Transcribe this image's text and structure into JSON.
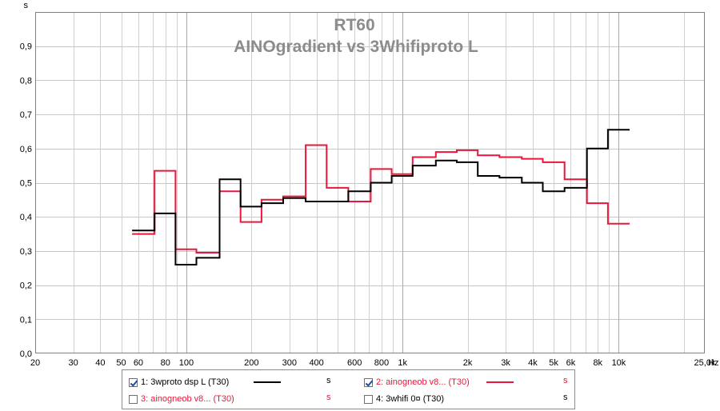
{
  "chart_data": {
    "type": "line",
    "title": "RT60",
    "subtitle": "AINOgradient vs 3Whifiproto L",
    "ylabel": "s",
    "xlabel": "Hz",
    "x_scale": "log",
    "xlim": [
      20,
      25000
    ],
    "ylim": [
      0,
      1.0
    ],
    "grid": true,
    "y_ticks": [
      "0,0",
      "0,1",
      "0,2",
      "0,3",
      "0,4",
      "0,5",
      "0,6",
      "0,7",
      "0,8",
      "0,9"
    ],
    "x_ticks": [
      {
        "v": 20,
        "label": "20"
      },
      {
        "v": 30,
        "label": "30"
      },
      {
        "v": 40,
        "label": "40"
      },
      {
        "v": 50,
        "label": "50"
      },
      {
        "v": 60,
        "label": "60"
      },
      {
        "v": 80,
        "label": "80"
      },
      {
        "v": 100,
        "label": "100"
      },
      {
        "v": 200,
        "label": "200"
      },
      {
        "v": 300,
        "label": "300"
      },
      {
        "v": 400,
        "label": "400"
      },
      {
        "v": 600,
        "label": "600"
      },
      {
        "v": 800,
        "label": "800"
      },
      {
        "v": 1000,
        "label": "1k"
      },
      {
        "v": 2000,
        "label": "2k"
      },
      {
        "v": 3000,
        "label": "3k"
      },
      {
        "v": 4000,
        "label": "4k"
      },
      {
        "v": 5000,
        "label": "5k"
      },
      {
        "v": 6000,
        "label": "6k"
      },
      {
        "v": 8000,
        "label": "8k"
      },
      {
        "v": 10000,
        "label": "10k"
      },
      {
        "v": 25000,
        "label": "25,0k"
      }
    ],
    "band_centers": [
      63,
      80,
      100,
      125,
      160,
      200,
      250,
      315,
      400,
      500,
      630,
      800,
      1000,
      1250,
      1600,
      2000,
      2500,
      3150,
      4000,
      5000,
      6300,
      8000,
      10000
    ],
    "series": [
      {
        "name": "1: 3wproto dsp L (T30)",
        "color": "#000000",
        "values": [
          0.36,
          0.41,
          0.26,
          0.28,
          0.51,
          0.43,
          0.44,
          0.455,
          0.445,
          0.445,
          0.475,
          0.5,
          0.52,
          0.55,
          0.565,
          0.56,
          0.52,
          0.515,
          0.5,
          0.475,
          0.485,
          0.6,
          0.655
        ]
      },
      {
        "name": "2: ainogneob v8... (T30)",
        "color": "#e8173b",
        "values": [
          0.35,
          0.535,
          0.305,
          0.295,
          0.475,
          0.385,
          0.45,
          0.46,
          0.61,
          0.485,
          0.445,
          0.54,
          0.525,
          0.575,
          0.59,
          0.595,
          0.58,
          0.575,
          0.57,
          0.56,
          0.51,
          0.44,
          0.38
        ]
      }
    ]
  },
  "legend": {
    "items": [
      {
        "label": "1: 3wproto dsp L (T30)",
        "unit": "s",
        "checked": true,
        "color": "#000000",
        "text_color": "#000000"
      },
      {
        "label": "2: ainogneob v8... (T30)",
        "unit": "s",
        "checked": true,
        "color": "#e8173b",
        "text_color": "#e8173b"
      },
      {
        "label": "3: ainogneob v8... (T30)",
        "unit": "s",
        "checked": false,
        "color": "",
        "text_color": "#e8173b"
      },
      {
        "label": "4: 3whifi 0¤ (T30)",
        "unit": "s",
        "checked": false,
        "color": "",
        "text_color": "#000000"
      }
    ]
  }
}
